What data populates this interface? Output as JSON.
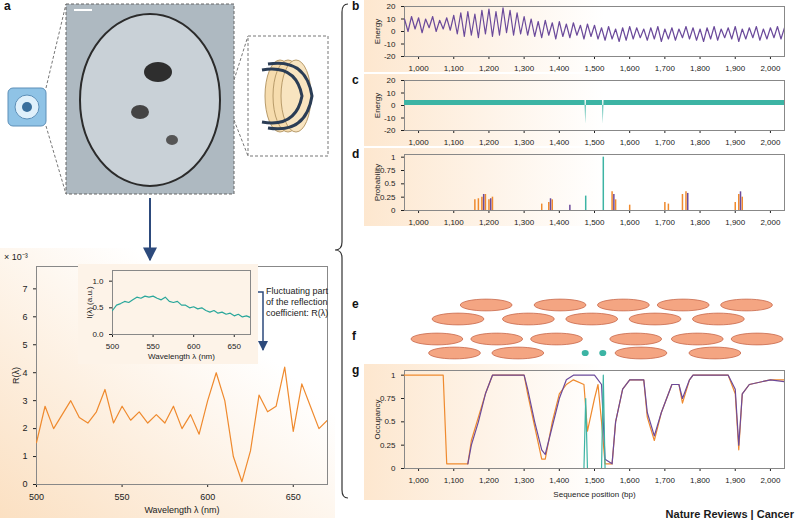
{
  "chart_data": [
    {
      "panel": "a",
      "type": "line",
      "x_label": "Wavelength λ (nm)",
      "y_label": "R(λ)",
      "y_multiplier": "× 10⁻³",
      "annotation": "Fluctuating part of the reflection coefficient: R(λ)",
      "x": [
        500,
        505,
        510,
        515,
        520,
        525,
        530,
        535,
        540,
        545,
        550,
        555,
        560,
        565,
        570,
        575,
        580,
        585,
        590,
        595,
        600,
        605,
        610,
        615,
        620,
        625,
        630,
        635,
        640,
        645,
        650,
        655,
        660,
        665,
        670
      ],
      "values": [
        1.5,
        2.8,
        2.0,
        2.5,
        3.0,
        2.4,
        2.2,
        2.6,
        3.4,
        2.2,
        2.8,
        2.3,
        2.6,
        2.2,
        2.5,
        2.2,
        2.8,
        2.0,
        2.5,
        1.8,
        3.0,
        4.0,
        3.0,
        1.0,
        0.1,
        1.2,
        3.2,
        2.6,
        2.8,
        4.2,
        1.9,
        3.6,
        2.8,
        2.0,
        2.3
      ],
      "color": "#ef8a2e",
      "xlim": [
        500,
        670
      ],
      "xticks": [
        500,
        550,
        600,
        650
      ],
      "ylim": [
        0,
        7.8
      ],
      "yticks": [
        0,
        1,
        2,
        3,
        4,
        5,
        6,
        7
      ]
    },
    {
      "type": "line",
      "x_label": "Wavelength λ (nm)",
      "y_label": "I(λ) (a.u.)",
      "x": [
        500,
        505,
        510,
        515,
        520,
        525,
        530,
        535,
        540,
        545,
        550,
        555,
        560,
        565,
        570,
        575,
        580,
        585,
        590,
        595,
        600,
        605,
        610,
        615,
        620,
        625,
        630,
        635,
        640,
        645,
        650,
        655,
        660,
        665,
        670
      ],
      "values": [
        0.45,
        0.55,
        0.58,
        0.62,
        0.6,
        0.65,
        0.7,
        0.68,
        0.72,
        0.7,
        0.72,
        0.68,
        0.65,
        0.7,
        0.62,
        0.6,
        0.62,
        0.55,
        0.55,
        0.5,
        0.52,
        0.48,
        0.5,
        0.45,
        0.42,
        0.45,
        0.4,
        0.42,
        0.38,
        0.4,
        0.35,
        0.38,
        0.33,
        0.35,
        0.32
      ],
      "color": "#2aa79b",
      "xlim": [
        500,
        670
      ],
      "xticks": [
        500,
        550,
        600,
        650
      ],
      "ylim": [
        0,
        1.2
      ],
      "yticks": [
        {
          "value": 0,
          "label": "0.0"
        },
        0.5,
        {
          "value": 1,
          "label": "1.0"
        }
      ]
    },
    {
      "panel": "b",
      "type": "line",
      "y_label": "Energy",
      "x": [
        960,
        970,
        980,
        990,
        1000,
        1010,
        1020,
        1030,
        1040,
        1050,
        1060,
        1070,
        1080,
        1090,
        1100,
        1110,
        1120,
        1130,
        1140,
        1150,
        1160,
        1170,
        1180,
        1190,
        1200,
        1210,
        1220,
        1230,
        1240,
        1250,
        1260,
        1270,
        1280,
        1290,
        1300,
        1310,
        1320,
        1330,
        1340,
        1350,
        1360,
        1370,
        1380,
        1390,
        1400,
        1410,
        1420,
        1430,
        1440,
        1450,
        1460,
        1470,
        1480,
        1490,
        1500,
        1510,
        1520,
        1530,
        1540,
        1550,
        1560,
        1570,
        1580,
        1590,
        1600,
        1610,
        1620,
        1630,
        1640,
        1650,
        1660,
        1670,
        1680,
        1690,
        1700,
        1710,
        1720,
        1730,
        1740,
        1750,
        1760,
        1770,
        1780,
        1790,
        1800,
        1810,
        1820,
        1830,
        1840,
        1850,
        1860,
        1870,
        1880,
        1890,
        1900,
        1910,
        1920,
        1930,
        1940,
        1950,
        1960,
        1970,
        1980,
        1990,
        2000,
        2010,
        2020,
        2030,
        2040
      ],
      "values": [
        10,
        0,
        12,
        2,
        11,
        -1,
        10,
        3,
        12,
        0,
        9,
        2,
        11,
        1,
        13,
        -2,
        15,
        -4,
        16,
        -3,
        14,
        -5,
        17,
        -2,
        18,
        -4,
        16,
        -3,
        19,
        -1,
        17,
        -3,
        15,
        -2,
        12,
        -3,
        10,
        -4,
        8,
        -5,
        9,
        -3,
        7,
        -6,
        8,
        -4,
        6,
        -5,
        7,
        -3,
        5,
        -6,
        6,
        -4,
        5,
        -6,
        3,
        -7,
        4,
        -6,
        2,
        -8,
        3,
        -7,
        4,
        -6,
        3,
        -5,
        2,
        -7,
        3,
        -6,
        4,
        -8,
        2,
        -6,
        3,
        -7,
        2,
        -5,
        4,
        -6,
        3,
        -7,
        2,
        -8,
        3,
        -6,
        4,
        -7,
        2,
        -5,
        3,
        -6,
        4,
        -8,
        2,
        -6,
        3,
        -5,
        4,
        -7,
        2,
        -6,
        3,
        -5,
        4,
        -6,
        3
      ],
      "color": "#6b4a9b",
      "xlim": [
        960,
        2040
      ],
      "xticks": [
        {
          "value": 1000,
          "label": "1,000"
        },
        {
          "value": 1100,
          "label": "1,100"
        },
        {
          "value": 1200,
          "label": "1,200"
        },
        {
          "value": 1300,
          "label": "1,300"
        },
        {
          "value": 1400,
          "label": "1,400"
        },
        {
          "value": 1500,
          "label": "1,500"
        },
        {
          "value": 1600,
          "label": "1,600"
        },
        {
          "value": 1700,
          "label": "1,700"
        },
        {
          "value": 1800,
          "label": "1,800"
        },
        {
          "value": 1900,
          "label": "1,900"
        },
        {
          "value": 2000,
          "label": "2,000"
        }
      ],
      "ylim": [
        -20,
        20
      ],
      "yticks": [
        -20,
        -10,
        0,
        10,
        20
      ]
    },
    {
      "panel": "c",
      "type": "area",
      "y_label": "Energy",
      "x": [
        960,
        1473,
        1475,
        1477,
        1523,
        1525,
        1527,
        2040
      ],
      "values": [
        4,
        4,
        -15,
        4,
        4,
        -15,
        4,
        4
      ],
      "color": "#3cb4a4",
      "xlim": [
        960,
        2040
      ],
      "xticks": [
        {
          "value": 1000,
          "label": "1,000"
        },
        {
          "value": 1100,
          "label": "1,100"
        },
        {
          "value": 1200,
          "label": "1,200"
        },
        {
          "value": 1300,
          "label": "1,300"
        },
        {
          "value": 1400,
          "label": "1,400"
        },
        {
          "value": 1500,
          "label": "1,500"
        },
        {
          "value": 1600,
          "label": "1,600"
        },
        {
          "value": 1700,
          "label": "1,700"
        },
        {
          "value": 1800,
          "label": "1,800"
        },
        {
          "value": 1900,
          "label": "1,900"
        },
        {
          "value": 2000,
          "label": "2,000"
        }
      ],
      "ylim": [
        -20,
        20
      ],
      "yticks": [
        -20,
        -10,
        0,
        10,
        20
      ]
    },
    {
      "panel": "d",
      "type": "spike",
      "y_label": "Probability",
      "series": [
        {
          "color": "#ef8a2e",
          "x": [
            1160,
            1170,
            1180,
            1190,
            1200,
            1210,
            1350,
            1370,
            1380,
            1550,
            1560,
            1600,
            1700,
            1710,
            1750,
            1760,
            1900,
            1910,
            1920
          ],
          "values": [
            0.2,
            0.22,
            0.25,
            0.3,
            0.2,
            0.25,
            0.12,
            0.15,
            0.2,
            0.35,
            0.2,
            0.1,
            0.15,
            0.12,
            0.3,
            0.35,
            0.15,
            0.3,
            0.25
          ]
        },
        {
          "color": "#6b4a9b",
          "x": [
            1185,
            1205,
            1375,
            1430,
            1555,
            1765,
            1915
          ],
          "values": [
            0.3,
            0.22,
            0.22,
            0.1,
            0.3,
            0.32,
            0.35
          ]
        },
        {
          "color": "#3cb4a4",
          "x": [
            1475,
            1525
          ],
          "values": [
            0.27,
            1
          ]
        }
      ],
      "xlim": [
        960,
        2040
      ],
      "xticks": [
        {
          "value": 1000,
          "label": "1,000"
        },
        {
          "value": 1100,
          "label": "1,100"
        },
        {
          "value": 1200,
          "label": "1,200"
        },
        {
          "value": 1300,
          "label": "1,300"
        },
        {
          "value": 1400,
          "label": "1,400"
        },
        {
          "value": 1500,
          "label": "1,500"
        },
        {
          "value": 1600,
          "label": "1,600"
        },
        {
          "value": 1700,
          "label": "1,700"
        },
        {
          "value": 1800,
          "label": "1,800"
        },
        {
          "value": 1900,
          "label": "1,900"
        },
        {
          "value": 2000,
          "label": "2,000"
        }
      ],
      "ylim": [
        0,
        1.05
      ],
      "yticks": [
        0,
        0.25,
        0.5,
        0.75,
        1
      ]
    },
    {
      "panel": "e",
      "type": "nucleosome_map",
      "tick_labels": false,
      "xlim": [
        960,
        2040
      ],
      "color": "#f4a582",
      "nucleosomes": [
        [
          [
            1120,
            1267
          ],
          [
            1330,
            1477
          ],
          [
            1510,
            1657
          ],
          [
            1680,
            1827
          ],
          [
            1860,
            2007
          ]
        ],
        [
          [
            1040,
            1187
          ],
          [
            1240,
            1387
          ],
          [
            1420,
            1567
          ],
          [
            1600,
            1747
          ],
          [
            1780,
            1927
          ]
        ]
      ]
    },
    {
      "panel": "f",
      "type": "nucleosome_map",
      "tick_labels": false,
      "xlim": [
        960,
        2040
      ],
      "color": "#f4a582",
      "nucleosomes": [
        [
          [
            980,
            1127
          ],
          [
            1150,
            1297
          ],
          [
            1320,
            1467
          ],
          [
            1545,
            1692
          ],
          [
            1720,
            1867
          ],
          [
            1890,
            2037
          ]
        ],
        [
          [
            1030,
            1177
          ],
          [
            1210,
            1357
          ],
          [
            1560,
            1707
          ],
          [
            1770,
            1917
          ]
        ]
      ],
      "factors": [
        [
          1465,
          1485
        ],
        [
          1515,
          1535
        ]
      ],
      "factor_color": "#3cb4a4"
    },
    {
      "panel": "g",
      "type": "line",
      "y_label": "Occupancy",
      "x_label": "Sequence position (bp)",
      "series": [
        {
          "color": "#ef8a2e",
          "x": [
            960,
            1070,
            1080,
            1140,
            1150,
            1170,
            1190,
            1210,
            1300,
            1310,
            1330,
            1350,
            1360,
            1380,
            1400,
            1420,
            1440,
            1470,
            1480,
            1500,
            1510,
            1520,
            1530,
            1550,
            1560,
            1580,
            1600,
            1640,
            1650,
            1670,
            1690,
            1720,
            1740,
            1750,
            1770,
            1780,
            1880,
            1900,
            1910,
            1920,
            1940,
            2000,
            2040
          ],
          "values": [
            1,
            1,
            0.05,
            0.05,
            0.3,
            0.55,
            0.8,
            1,
            1,
            0.8,
            0.45,
            0.1,
            0.1,
            0.5,
            0.8,
            0.9,
            0.95,
            0.9,
            0.4,
            0.75,
            0.9,
            0.5,
            0.05,
            0.05,
            0.5,
            0.85,
            0.95,
            0.95,
            0.55,
            0.3,
            0.6,
            0.9,
            0.9,
            0.7,
            0.95,
            1,
            1,
            0.8,
            0.2,
            0.8,
            0.9,
            0.95,
            0.95
          ]
        },
        {
          "color": "#6b4a9b",
          "x": [
            1140,
            1150,
            1170,
            1190,
            1210,
            1300,
            1310,
            1330,
            1350,
            1360,
            1380,
            1400,
            1420,
            1440,
            1500,
            1520,
            1530,
            1550,
            1560,
            1580,
            1600,
            1640,
            1650,
            1670,
            1690,
            1720,
            1740,
            1750,
            1770,
            1780,
            1880,
            1900,
            1910,
            1920,
            1940,
            2000,
            2040
          ],
          "values": [
            0.05,
            0.25,
            0.5,
            0.8,
            1,
            1,
            0.85,
            0.5,
            0.2,
            0.15,
            0.45,
            0.75,
            0.95,
            1,
            1,
            0.9,
            0.1,
            0.05,
            0.5,
            0.85,
            0.95,
            0.95,
            0.6,
            0.35,
            0.6,
            0.9,
            0.9,
            0.75,
            0.95,
            1,
            1,
            0.85,
            0.25,
            0.8,
            0.9,
            0.95,
            0.93
          ]
        },
        {
          "color": "#3cb4a4",
          "x": [
            960,
            1470,
            1475,
            1480,
            1520,
            1525,
            1530,
            2040
          ],
          "values": [
            0,
            0,
            0.75,
            0,
            0,
            1,
            0,
            0
          ]
        }
      ],
      "xlim": [
        960,
        2040
      ],
      "xticks": [
        {
          "value": 1000,
          "label": "1,000"
        },
        {
          "value": 1100,
          "label": "1,100"
        },
        {
          "value": 1200,
          "label": "1,200"
        },
        {
          "value": 1300,
          "label": "1,300"
        },
        {
          "value": 1400,
          "label": "1,400"
        },
        {
          "value": 1500,
          "label": "1,500"
        },
        {
          "value": 1600,
          "label": "1,600"
        },
        {
          "value": 1700,
          "label": "1,700"
        },
        {
          "value": 1800,
          "label": "1,800"
        },
        {
          "value": 1900,
          "label": "1,900"
        },
        {
          "value": 2000,
          "label": "2,000"
        }
      ],
      "ylim": [
        0,
        1.05
      ],
      "yticks": [
        0,
        0.25,
        0.5,
        0.75,
        1
      ]
    }
  ],
  "caption": "Nature Reviews | Cancer"
}
